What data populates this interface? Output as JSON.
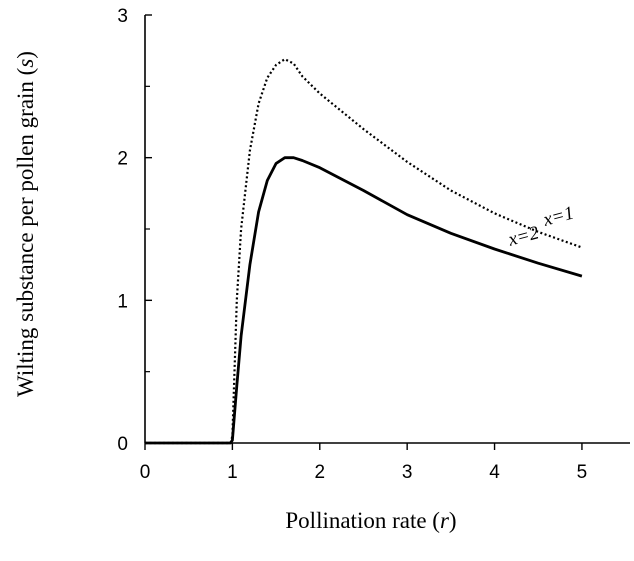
{
  "chart_data": {
    "type": "line",
    "xlabel": {
      "prefix": "Pollination rate (",
      "var": "r",
      "suffix": ")"
    },
    "ylabel": {
      "prefix": "Wilting substance per pollen grain (",
      "var": "s",
      "suffix": ")"
    },
    "xlim": [
      0,
      5.55
    ],
    "ylim": [
      0,
      3
    ],
    "xticks": [
      0,
      1,
      2,
      3,
      4,
      5
    ],
    "yticks": [
      0,
      1,
      2,
      3
    ],
    "grid": false,
    "legend": "none",
    "series": [
      {
        "name": "x=1",
        "style": "dotted",
        "color": "#000000",
        "x": [
          0,
          0.98,
          1.0,
          1.05,
          1.1,
          1.2,
          1.3,
          1.4,
          1.5,
          1.6,
          1.7,
          1.8,
          2.0,
          2.5,
          3.0,
          3.5,
          4.0,
          4.5,
          5.0
        ],
        "y": [
          0,
          0,
          0.05,
          1.0,
          1.5,
          2.05,
          2.38,
          2.56,
          2.65,
          2.69,
          2.66,
          2.57,
          2.45,
          2.2,
          1.97,
          1.77,
          1.61,
          1.48,
          1.37
        ]
      },
      {
        "name": "x=2",
        "style": "solid",
        "color": "#000000",
        "x": [
          0,
          0.98,
          1.0,
          1.05,
          1.1,
          1.2,
          1.3,
          1.4,
          1.5,
          1.6,
          1.7,
          1.8,
          2.0,
          2.5,
          3.0,
          3.5,
          4.0,
          4.5,
          5.0
        ],
        "y": [
          0,
          0,
          0.02,
          0.4,
          0.75,
          1.25,
          1.62,
          1.84,
          1.96,
          2.0,
          2.0,
          1.98,
          1.93,
          1.77,
          1.6,
          1.47,
          1.36,
          1.26,
          1.17
        ]
      }
    ],
    "annotations": [
      {
        "text": "x=1",
        "series": "x=1",
        "at_x": 4.75,
        "at_y": 1.55
      },
      {
        "text": "x=2",
        "series": "x=2",
        "at_x": 4.35,
        "at_y": 1.41
      }
    ]
  }
}
